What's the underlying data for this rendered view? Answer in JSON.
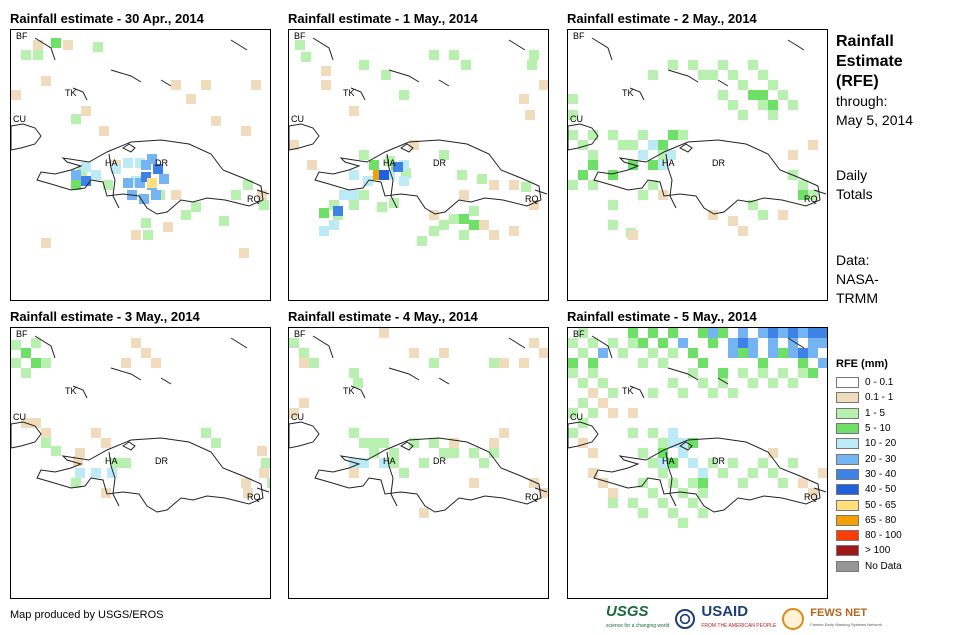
{
  "panels": [
    {
      "title": "Rainfall estimate - 30 Apr., 2014"
    },
    {
      "title": "Rainfall estimate - 1 May., 2014"
    },
    {
      "title": "Rainfall estimate - 2 May., 2014"
    },
    {
      "title": "Rainfall estimate - 3 May., 2014"
    },
    {
      "title": "Rainfall estimate - 4 May., 2014"
    },
    {
      "title": "Rainfall estimate - 5 May., 2014"
    }
  ],
  "place_labels": {
    "bf": "BF",
    "tk": "TK",
    "cu": "CU",
    "ha": "HA",
    "dr": "DR",
    "rq": "RQ"
  },
  "side": {
    "title_line1": "Rainfall",
    "title_line2": "Estimate",
    "title_line3": "(RFE)",
    "through_label": "through:",
    "through_date": "May 5, 2014",
    "daily_line1": "Daily",
    "daily_line2": "Totals",
    "data_line1": "Data:",
    "data_line2": "NASA-",
    "data_line3": "TRMM"
  },
  "legend": {
    "title": "RFE (mm)",
    "classes": [
      {
        "label": "0 - 0.1",
        "color": "#ffffff"
      },
      {
        "label": "0.1 - 1",
        "color": "#f0dcbc"
      },
      {
        "label": "1 - 5",
        "color": "#b8f0b0"
      },
      {
        "label": "5 - 10",
        "color": "#6ee068"
      },
      {
        "label": "10 - 20",
        "color": "#bdebf5"
      },
      {
        "label": "20 - 30",
        "color": "#74b4f2"
      },
      {
        "label": "30 - 40",
        "color": "#3e82e8"
      },
      {
        "label": "40 - 50",
        "color": "#2060dc"
      },
      {
        "label": "50 - 65",
        "color": "#ffe07a"
      },
      {
        "label": "65 - 80",
        "color": "#f5a000"
      },
      {
        "label": "80 - 100",
        "color": "#ff3c00"
      },
      {
        "label": "> 100",
        "color": "#a01818"
      },
      {
        "label": "No Data",
        "color": "#969696"
      }
    ]
  },
  "credit": "Map produced by USGS/EROS",
  "logos": {
    "usgs": "USGS",
    "usgs_tagline": "science for a changing world",
    "usaid": "USAID",
    "usaid_tagline": "FROM THE AMERICAN PEOPLE",
    "fews": "FEWS NET",
    "fews_tagline": "Famine Early Warning Systems Network"
  }
}
